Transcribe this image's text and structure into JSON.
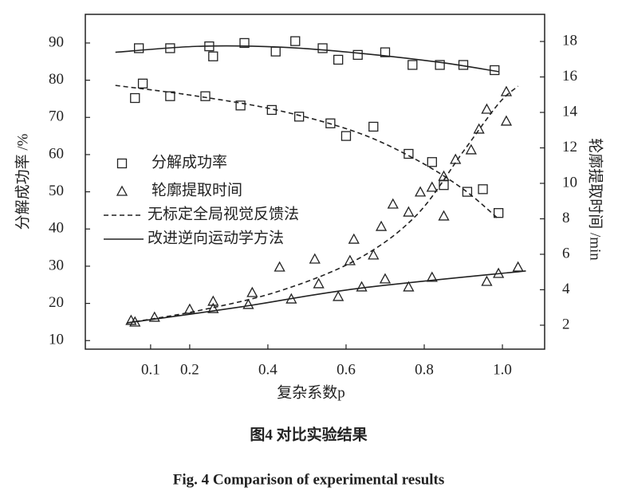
{
  "chart_data": {
    "type": "line",
    "xlabel": "复杂系数p",
    "ylabel": "分解成功率 /%",
    "y2label": "轮廓提取时间 /min",
    "caption_cn": "图4  对比实验结果",
    "caption_en": "Fig. 4  Comparison of experimental results",
    "xlim": [
      -0.067,
      1.108
    ],
    "xticks": [
      0.1,
      0.2,
      0.4,
      0.6,
      0.8,
      {
        "value": 1.0,
        "label": "1.0"
      }
    ],
    "ylim": [
      7.7,
      97.7
    ],
    "yticks": [
      10,
      20,
      30,
      40,
      50,
      60,
      70,
      80,
      90
    ],
    "y2lim": [
      0.65,
      19.53
    ],
    "y2ticks": [
      2,
      4,
      6,
      8,
      10,
      12,
      14,
      16,
      18
    ],
    "series": [
      {
        "name": "分解成功率",
        "style": "square",
        "axis": "y",
        "color": "#222222",
        "x": [
          0.07,
          0.08,
          0.06,
          0.15,
          0.15,
          0.24,
          0.25,
          0.26,
          0.33,
          0.34,
          0.41,
          0.42,
          0.48,
          0.47,
          0.54,
          0.56,
          0.58,
          0.6,
          0.63,
          0.67,
          0.7,
          0.76,
          0.77,
          0.82,
          0.84,
          0.85,
          0.9,
          0.91,
          0.95,
          0.98,
          0.99
        ],
        "values": [
          88.6,
          79.1,
          75.2,
          88.6,
          75.7,
          75.7,
          89.1,
          86.4,
          73.2,
          90.0,
          72.0,
          87.7,
          70.2,
          90.5,
          88.6,
          68.4,
          85.5,
          65.0,
          86.8,
          67.5,
          87.5,
          60.2,
          84.1,
          58.0,
          84.1,
          51.8,
          84.1,
          50.0,
          50.7,
          82.7,
          44.3
        ]
      },
      {
        "name": "轮廓提取时间",
        "style": "triangle",
        "axis": "y2",
        "color": "#222222",
        "x": [
          0.05,
          0.06,
          0.11,
          0.2,
          0.26,
          0.26,
          0.35,
          0.36,
          0.43,
          0.46,
          0.52,
          0.53,
          0.58,
          0.61,
          0.62,
          0.64,
          0.67,
          0.69,
          0.7,
          0.72,
          0.76,
          0.76,
          0.79,
          0.82,
          0.82,
          0.85,
          0.85,
          0.88,
          0.92,
          0.94,
          0.96,
          0.96,
          0.99,
          1.01,
          1.01,
          1.04
        ],
        "values": [
          2.27,
          2.18,
          2.45,
          2.9,
          3.35,
          2.94,
          3.17,
          3.84,
          5.28,
          3.48,
          5.73,
          4.34,
          3.62,
          5.64,
          6.85,
          4.16,
          5.96,
          7.57,
          4.61,
          8.83,
          4.16,
          8.38,
          9.51,
          9.78,
          4.7,
          8.16,
          10.4,
          11.35,
          11.89,
          13.06,
          4.47,
          14.18,
          4.92,
          13.51,
          15.17,
          5.28
        ]
      },
      {
        "name": "无标定全局视觉反馈法",
        "style": "dashed",
        "axis": "y",
        "color": "#222222",
        "x": [
          0.01,
          0.22,
          0.43,
          0.63,
          0.78,
          0.9,
          0.99
        ],
        "values": [
          78.6,
          75.7,
          71.8,
          65.9,
          58.6,
          50.7,
          42.7
        ]
      },
      {
        "name": "改进逆向运动学方法",
        "style": "solid",
        "axis": "y",
        "color": "#222222",
        "x": [
          0.01,
          0.22,
          0.43,
          0.63,
          0.84,
          0.99
        ],
        "values": [
          87.5,
          89.1,
          88.9,
          87.3,
          84.8,
          82.3
        ]
      },
      {
        "style": "dashed",
        "axis": "y2",
        "color": "#222222",
        "x": [
          0.04,
          0.22,
          0.43,
          0.63,
          0.78,
          0.9,
          0.99,
          1.04
        ],
        "values": [
          2.13,
          2.81,
          3.93,
          5.73,
          8.2,
          11.8,
          14.49,
          15.48
        ]
      },
      {
        "style": "solid",
        "axis": "y2",
        "color": "#222222",
        "x": [
          0.04,
          0.33,
          0.63,
          1.06
        ],
        "values": [
          2.13,
          3.03,
          4.07,
          5.06
        ]
      }
    ]
  }
}
